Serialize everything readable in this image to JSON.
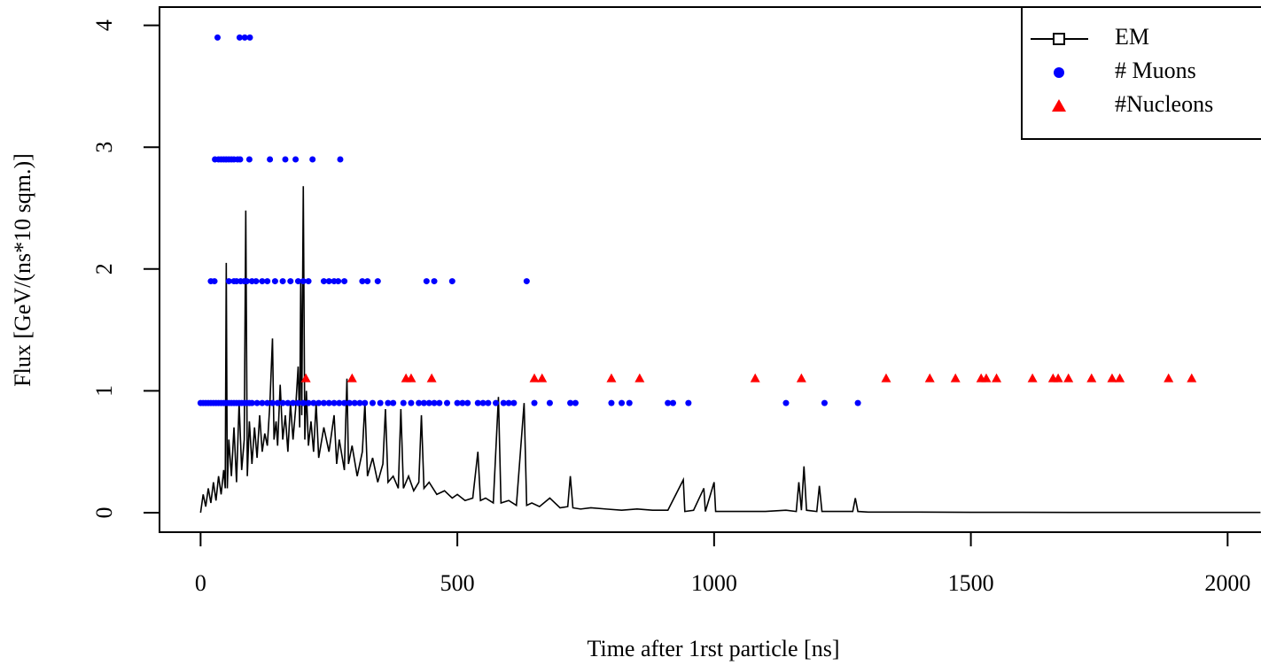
{
  "chart_data": {
    "type": "line",
    "xlabel": "Time after 1rst particle [ns]",
    "ylabel": "Flux [GeV/(ns*10 sqm.)]",
    "xlim": [
      -80,
      2065
    ],
    "ylim": [
      -0.16,
      4.15
    ],
    "xticks": [
      0,
      500,
      1000,
      1500,
      2000
    ],
    "yticks": [
      0,
      1,
      2,
      3,
      4
    ],
    "legend": "topright",
    "series": [
      {
        "name": "EM",
        "mark": "line",
        "color": "#000000",
        "x": [
          0,
          5,
          10,
          15,
          20,
          25,
          30,
          35,
          40,
          45,
          48,
          50,
          52,
          55,
          60,
          65,
          70,
          75,
          80,
          85,
          88,
          91,
          95,
          100,
          105,
          110,
          115,
          120,
          125,
          130,
          135,
          140,
          143,
          147,
          150,
          155,
          160,
          165,
          170,
          175,
          180,
          185,
          190,
          193,
          195,
          197,
          200,
          203,
          206,
          210,
          215,
          220,
          225,
          230,
          240,
          250,
          260,
          265,
          270,
          280,
          285,
          288,
          295,
          305,
          315,
          320,
          325,
          335,
          345,
          355,
          360,
          365,
          375,
          385,
          390,
          395,
          405,
          415,
          425,
          430,
          435,
          445,
          460,
          475,
          490,
          500,
          515,
          530,
          540,
          545,
          555,
          570,
          580,
          585,
          600,
          615,
          630,
          635,
          645,
          660,
          680,
          700,
          715,
          720,
          725,
          740,
          760,
          790,
          820,
          850,
          880,
          910,
          940,
          943,
          960,
          980,
          983,
          1000,
          1003,
          1030,
          1060,
          1100,
          1140,
          1160,
          1165,
          1170,
          1175,
          1180,
          1200,
          1205,
          1210,
          1240,
          1270,
          1275,
          1280,
          1300,
          1400,
          1500,
          1600,
          1700,
          1800,
          1900,
          2000,
          2064
        ],
        "values": [
          0,
          0.15,
          0.05,
          0.2,
          0.08,
          0.25,
          0.1,
          0.3,
          0.15,
          0.35,
          0.2,
          2.05,
          0.2,
          0.6,
          0.3,
          0.7,
          0.25,
          0.9,
          0.35,
          0.6,
          2.48,
          0.3,
          0.75,
          0.4,
          0.7,
          0.45,
          0.8,
          0.5,
          0.65,
          0.55,
          0.9,
          1.43,
          0.6,
          0.75,
          0.55,
          1.05,
          0.6,
          0.8,
          0.5,
          0.9,
          0.6,
          0.85,
          1.2,
          0.7,
          1.9,
          0.8,
          2.68,
          0.6,
          1.0,
          0.55,
          0.75,
          0.5,
          0.9,
          0.45,
          0.7,
          0.5,
          0.8,
          0.4,
          0.6,
          0.35,
          1.1,
          0.4,
          0.55,
          0.3,
          0.5,
          0.9,
          0.3,
          0.45,
          0.25,
          0.4,
          0.85,
          0.25,
          0.3,
          0.2,
          0.85,
          0.2,
          0.3,
          0.18,
          0.25,
          0.8,
          0.2,
          0.25,
          0.15,
          0.18,
          0.12,
          0.15,
          0.1,
          0.12,
          0.5,
          0.1,
          0.12,
          0.08,
          0.95,
          0.08,
          0.1,
          0.06,
          0.9,
          0.06,
          0.08,
          0.05,
          0.12,
          0.04,
          0.05,
          0.3,
          0.04,
          0.03,
          0.04,
          0.03,
          0.02,
          0.03,
          0.02,
          0.02,
          0.27,
          0.01,
          0.02,
          0.2,
          0.01,
          0.25,
          0.01,
          0.01,
          0.01,
          0.01,
          0.02,
          0.01,
          0.25,
          0.02,
          0.38,
          0.02,
          0.01,
          0.22,
          0.01,
          0.01,
          0.01,
          0.12,
          0.01,
          0.005,
          0.005,
          0.003,
          0.003,
          0.002,
          0.002,
          0.002,
          0.002,
          0.002
        ]
      },
      {
        "name": "# Muons",
        "mark": "circle",
        "color": "#0000ff",
        "x": [
          33,
          76,
          86,
          96,
          28,
          35,
          40,
          45,
          50,
          55,
          60,
          65,
          72,
          77,
          95,
          135,
          165,
          185,
          218,
          272,
          20,
          27,
          55,
          65,
          70,
          78,
          85,
          90,
          100,
          108,
          120,
          130,
          145,
          160,
          175,
          190,
          200,
          210,
          240,
          250,
          260,
          268,
          280,
          315,
          325,
          345,
          440,
          455,
          490,
          635,
          0,
          5,
          10,
          15,
          20,
          25,
          30,
          35,
          40,
          45,
          50,
          55,
          60,
          65,
          70,
          75,
          80,
          85,
          90,
          95,
          100,
          110,
          120,
          130,
          140,
          150,
          160,
          170,
          180,
          190,
          200,
          210,
          220,
          230,
          240,
          250,
          260,
          270,
          280,
          290,
          300,
          310,
          320,
          335,
          350,
          365,
          375,
          395,
          410,
          425,
          435,
          445,
          455,
          465,
          480,
          500,
          510,
          520,
          540,
          550,
          560,
          575,
          590,
          600,
          610,
          650,
          680,
          720,
          730,
          800,
          820,
          835,
          910,
          920,
          950,
          1140,
          1215,
          1280
        ],
        "values": [
          3.9,
          3.9,
          3.9,
          3.9,
          2.9,
          2.9,
          2.9,
          2.9,
          2.9,
          2.9,
          2.9,
          2.9,
          2.9,
          2.9,
          2.9,
          2.9,
          2.9,
          2.9,
          2.9,
          2.9,
          1.9,
          1.9,
          1.9,
          1.9,
          1.9,
          1.9,
          1.9,
          1.9,
          1.9,
          1.9,
          1.9,
          1.9,
          1.9,
          1.9,
          1.9,
          1.9,
          1.9,
          1.9,
          1.9,
          1.9,
          1.9,
          1.9,
          1.9,
          1.9,
          1.9,
          1.9,
          1.9,
          1.9,
          1.9,
          1.9,
          0.9,
          0.9,
          0.9,
          0.9,
          0.9,
          0.9,
          0.9,
          0.9,
          0.9,
          0.9,
          0.9,
          0.9,
          0.9,
          0.9,
          0.9,
          0.9,
          0.9,
          0.9,
          0.9,
          0.9,
          0.9,
          0.9,
          0.9,
          0.9,
          0.9,
          0.9,
          0.9,
          0.9,
          0.9,
          0.9,
          0.9,
          0.9,
          0.9,
          0.9,
          0.9,
          0.9,
          0.9,
          0.9,
          0.9,
          0.9,
          0.9,
          0.9,
          0.9,
          0.9,
          0.9,
          0.9,
          0.9,
          0.9,
          0.9,
          0.9,
          0.9,
          0.9,
          0.9,
          0.9,
          0.9,
          0.9,
          0.9,
          0.9,
          0.9,
          0.9,
          0.9,
          0.9,
          0.9,
          0.9,
          0.9,
          0.9,
          0.9,
          0.9,
          0.9,
          0.9,
          0.9,
          0.9,
          0.9,
          0.9,
          0.9,
          0.9,
          0.9,
          0.9
        ]
      },
      {
        "name": "#Nucleons",
        "mark": "triangle",
        "color": "#ff0000",
        "x": [
          205,
          295,
          400,
          410,
          450,
          650,
          665,
          800,
          855,
          1080,
          1170,
          1335,
          1420,
          1470,
          1520,
          1530,
          1550,
          1620,
          1660,
          1670,
          1690,
          1735,
          1775,
          1790,
          1885,
          1930
        ],
        "values": [
          1.1,
          1.1,
          1.1,
          1.1,
          1.1,
          1.1,
          1.1,
          1.1,
          1.1,
          1.1,
          1.1,
          1.1,
          1.1,
          1.1,
          1.1,
          1.1,
          1.1,
          1.1,
          1.1,
          1.1,
          1.1,
          1.1,
          1.1,
          1.1,
          1.1,
          1.1
        ]
      }
    ]
  }
}
